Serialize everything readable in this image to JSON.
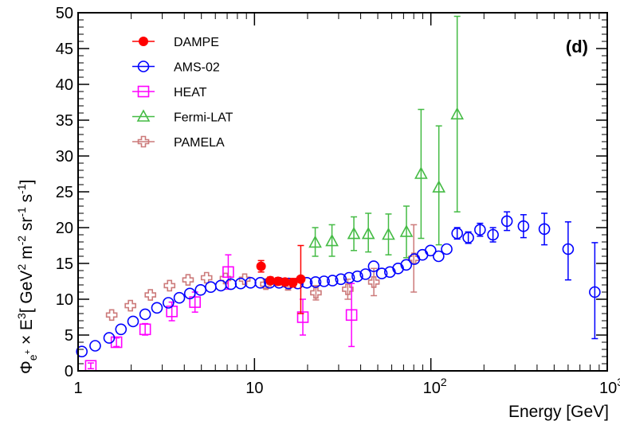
{
  "chart_data": {
    "type": "scatter",
    "panel_label": "(d)",
    "xlabel": "Energy [GeV]",
    "ylabel": "Φe+ × E3[ GeV2 m-2 sr-1 s-1]",
    "ylabel_parts": {
      "phi": "Φ",
      "phi_sub": "e",
      "phi_sub_sup": "+",
      "times": " × E",
      "e_pow": "3",
      "unit_a": "[ GeV",
      "unit_a_pow": "2",
      "unit_b": " m",
      "unit_b_pow": "-2",
      "unit_c": " sr",
      "unit_c_pow": "-1",
      "unit_d": " s",
      "unit_d_pow": "-1",
      "unit_end": "]"
    },
    "xscale": "log",
    "xlim": [
      1,
      1000
    ],
    "ylim": [
      0,
      50
    ],
    "x_ticks": [
      {
        "value": 1,
        "base": "1",
        "exp": ""
      },
      {
        "value": 10,
        "base": "10",
        "exp": ""
      },
      {
        "value": 100,
        "base": "10",
        "exp": "2"
      },
      {
        "value": 1000,
        "base": "10",
        "exp": "3"
      }
    ],
    "y_ticks": [
      0,
      5,
      10,
      15,
      20,
      25,
      30,
      35,
      40,
      45,
      50
    ],
    "legend_position": "top-left",
    "series": [
      {
        "name": "DAMPE",
        "color": "#ff0000",
        "marker": "filled-circle",
        "points": [
          {
            "x": 10.9,
            "y": 14.6,
            "lo": 13.8,
            "hi": 15.4
          },
          {
            "x": 12.3,
            "y": 12.6,
            "lo": 12.1,
            "hi": 13.1
          },
          {
            "x": 13.6,
            "y": 12.5,
            "lo": 12.0,
            "hi": 13.0
          },
          {
            "x": 14.9,
            "y": 12.4,
            "lo": 11.9,
            "hi": 12.9
          },
          {
            "x": 16.5,
            "y": 12.3,
            "lo": 11.7,
            "hi": 12.9
          },
          {
            "x": 18.3,
            "y": 12.8,
            "lo": 8.0,
            "hi": 17.5
          }
        ]
      },
      {
        "name": "AMS-02",
        "color": "#0000ff",
        "marker": "open-circle",
        "points": [
          {
            "x": 1.05,
            "y": 2.7
          },
          {
            "x": 1.25,
            "y": 3.5
          },
          {
            "x": 1.5,
            "y": 4.6
          },
          {
            "x": 1.75,
            "y": 5.8
          },
          {
            "x": 2.05,
            "y": 6.9
          },
          {
            "x": 2.4,
            "y": 7.9
          },
          {
            "x": 2.8,
            "y": 8.8
          },
          {
            "x": 3.25,
            "y": 9.5
          },
          {
            "x": 3.75,
            "y": 10.2
          },
          {
            "x": 4.3,
            "y": 10.8
          },
          {
            "x": 4.95,
            "y": 11.3
          },
          {
            "x": 5.65,
            "y": 11.7
          },
          {
            "x": 6.45,
            "y": 11.9
          },
          {
            "x": 7.35,
            "y": 12.1
          },
          {
            "x": 8.35,
            "y": 12.2
          },
          {
            "x": 9.5,
            "y": 12.3
          },
          {
            "x": 10.8,
            "y": 12.3
          },
          {
            "x": 12.2,
            "y": 12.3
          },
          {
            "x": 13.8,
            "y": 12.3
          },
          {
            "x": 15.6,
            "y": 12.2
          },
          {
            "x": 17.6,
            "y": 12.2
          },
          {
            "x": 19.8,
            "y": 12.3
          },
          {
            "x": 22.2,
            "y": 12.4
          },
          {
            "x": 24.8,
            "y": 12.5
          },
          {
            "x": 27.7,
            "y": 12.6
          },
          {
            "x": 30.9,
            "y": 12.8
          },
          {
            "x": 34.4,
            "y": 13.0
          },
          {
            "x": 38.3,
            "y": 13.2
          },
          {
            "x": 42.6,
            "y": 13.5
          },
          {
            "x": 47.4,
            "y": 14.6
          },
          {
            "x": 52.7,
            "y": 13.6
          },
          {
            "x": 58.6,
            "y": 13.8
          },
          {
            "x": 65.2,
            "y": 14.3
          },
          {
            "x": 72.5,
            "y": 14.8
          },
          {
            "x": 80.6,
            "y": 15.6
          },
          {
            "x": 89.6,
            "y": 16.2
          },
          {
            "x": 99.6,
            "y": 16.8
          },
          {
            "x": 110.6,
            "y": 16.0
          },
          {
            "x": 123,
            "y": 17.0
          },
          {
            "x": 141,
            "y": 19.2,
            "lo": 18.4,
            "hi": 20.0
          },
          {
            "x": 163,
            "y": 18.6,
            "lo": 17.8,
            "hi": 19.4
          },
          {
            "x": 190,
            "y": 19.7,
            "lo": 18.8,
            "hi": 20.6
          },
          {
            "x": 225,
            "y": 19.0,
            "lo": 18.0,
            "hi": 20.0
          },
          {
            "x": 270,
            "y": 20.9,
            "lo": 19.6,
            "hi": 22.2
          },
          {
            "x": 335,
            "y": 20.2,
            "lo": 18.6,
            "hi": 21.8
          },
          {
            "x": 440,
            "y": 19.8,
            "lo": 17.6,
            "hi": 22.0
          },
          {
            "x": 600,
            "y": 17.0,
            "lo": 12.7,
            "hi": 20.8
          },
          {
            "x": 850,
            "y": 11.0,
            "lo": 4.5,
            "hi": 17.9
          }
        ]
      },
      {
        "name": "HEAT",
        "color": "#ff00ff",
        "marker": "open-square",
        "points": [
          {
            "x": 1.18,
            "y": 0.7,
            "lo": 0.3,
            "hi": 1.1
          },
          {
            "x": 1.65,
            "y": 4.0,
            "lo": 3.4,
            "hi": 4.6
          },
          {
            "x": 2.4,
            "y": 5.8,
            "lo": 5.0,
            "hi": 6.6
          },
          {
            "x": 3.4,
            "y": 8.3,
            "lo": 7.0,
            "hi": 9.6
          },
          {
            "x": 4.6,
            "y": 9.6,
            "lo": 8.2,
            "hi": 11.0
          },
          {
            "x": 7.1,
            "y": 13.8,
            "lo": 11.4,
            "hi": 16.2
          },
          {
            "x": 18.8,
            "y": 7.5,
            "lo": 5.0,
            "hi": 10.0
          },
          {
            "x": 35.5,
            "y": 7.8,
            "lo": 3.4,
            "hi": 12.2
          }
        ]
      },
      {
        "name": "Fermi-LAT",
        "color": "#44bb44",
        "marker": "open-triangle",
        "points": [
          {
            "x": 22.1,
            "y": 17.9,
            "lo": 16.0,
            "hi": 20.0
          },
          {
            "x": 27.5,
            "y": 18.1,
            "lo": 16.0,
            "hi": 20.4
          },
          {
            "x": 36.6,
            "y": 19.1,
            "lo": 16.8,
            "hi": 21.5
          },
          {
            "x": 44.2,
            "y": 19.1,
            "lo": 16.6,
            "hi": 22.0
          },
          {
            "x": 57.5,
            "y": 19.0,
            "lo": 16.2,
            "hi": 21.9
          },
          {
            "x": 72.7,
            "y": 19.4,
            "lo": 15.8,
            "hi": 23.0
          },
          {
            "x": 88,
            "y": 27.5,
            "lo": 18.5,
            "hi": 36.5
          },
          {
            "x": 111,
            "y": 25.6,
            "lo": 17.6,
            "hi": 34.2
          },
          {
            "x": 141,
            "y": 35.8,
            "lo": 22.2,
            "hi": 49.5
          }
        ]
      },
      {
        "name": "PAMELA",
        "color": "#cc7a7a",
        "marker": "open-cross",
        "points": [
          {
            "x": 1.55,
            "y": 7.8
          },
          {
            "x": 1.98,
            "y": 9.1
          },
          {
            "x": 2.57,
            "y": 10.6
          },
          {
            "x": 3.3,
            "y": 11.9
          },
          {
            "x": 4.2,
            "y": 12.7
          },
          {
            "x": 5.35,
            "y": 13.0
          },
          {
            "x": 6.85,
            "y": 12.9
          },
          {
            "x": 8.8,
            "y": 12.8
          },
          {
            "x": 11.6,
            "y": 12.1,
            "lo": 11.5,
            "hi": 12.7
          },
          {
            "x": 15.5,
            "y": 12.0,
            "lo": 11.3,
            "hi": 12.7
          },
          {
            "x": 22.3,
            "y": 10.9,
            "lo": 9.9,
            "hi": 11.9
          },
          {
            "x": 33.8,
            "y": 11.4,
            "lo": 10.0,
            "hi": 12.8
          },
          {
            "x": 47.5,
            "y": 12.4,
            "lo": 10.5,
            "hi": 14.3
          },
          {
            "x": 80,
            "y": 15.7,
            "lo": 11.0,
            "hi": 20.4
          }
        ]
      }
    ]
  }
}
